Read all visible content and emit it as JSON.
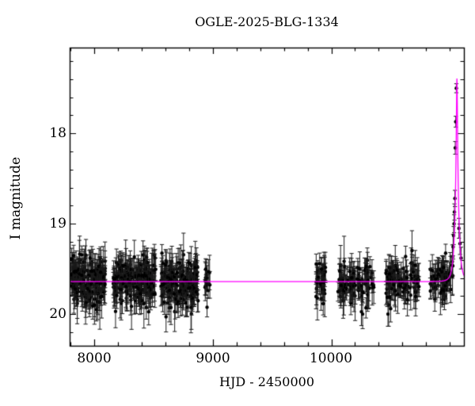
{
  "title": "OGLE-2025-BLG-1334",
  "axes": {
    "xlabel": "HJD - 2450000",
    "ylabel": "I magnitude",
    "x_tick_labels": [
      "8000",
      "9000",
      "10000"
    ],
    "y_tick_labels": [
      "18",
      "19",
      "20"
    ]
  },
  "colors": {
    "background": "#ffffff",
    "frame": "#000000",
    "data_points": "#000000",
    "error_bars": "#1a1a1a",
    "model_curve": "#ff00ff"
  },
  "chart_data": {
    "type": "scatter",
    "title": "OGLE-2025-BLG-1334",
    "xlabel": "HJD - 2450000",
    "ylabel": "I magnitude",
    "xlim": [
      7790,
      11120
    ],
    "ylim": [
      20.35,
      17.05
    ],
    "y_axis_inverted": true,
    "grid": false,
    "legend": false,
    "x_major_ticks": [
      8000,
      9000,
      10000
    ],
    "x_minor_step": 200,
    "y_major_ticks": [
      18,
      19,
      20
    ],
    "y_minor_step": 0.2,
    "model": {
      "kind": "paczynski-microlensing-fit",
      "t0": 11061,
      "tE": 30,
      "u0": 0.127,
      "I_baseline": 19.64,
      "I_peak": 17.39
    },
    "seasons": [
      {
        "t_start": 7800,
        "t_end": 8090,
        "n": 170,
        "sigma": 0.12
      },
      {
        "t_start": 8158,
        "t_end": 8520,
        "n": 200,
        "sigma": 0.12
      },
      {
        "t_start": 8560,
        "t_end": 8875,
        "n": 170,
        "sigma": 0.13
      },
      {
        "t_start": 8928,
        "t_end": 8995,
        "n": 14,
        "sigma": 0.1
      },
      {
        "t_start": 9868,
        "t_end": 9952,
        "n": 38,
        "sigma": 0.11
      },
      {
        "t_start": 10055,
        "t_end": 10360,
        "n": 95,
        "sigma": 0.12
      },
      {
        "t_start": 10460,
        "t_end": 10745,
        "n": 95,
        "sigma": 0.12
      },
      {
        "t_start": 10835,
        "t_end": 11030,
        "n": 70,
        "sigma": 0.1
      }
    ],
    "peak_points": [
      {
        "t": 11033,
        "mag": 19.13,
        "err": 0.1
      },
      {
        "t": 11037,
        "mag": 19.0,
        "err": 0.1
      },
      {
        "t": 11040,
        "mag": 18.87,
        "err": 0.09
      },
      {
        "t": 11044,
        "mag": 18.72,
        "err": 0.09
      },
      {
        "t": 11047,
        "mag": 18.16,
        "err": 0.07
      },
      {
        "t": 11051,
        "mag": 17.87,
        "err": 0.06
      },
      {
        "t": 11056,
        "mag": 17.5,
        "err": 0.05
      },
      {
        "t": 11078,
        "mag": 19.05,
        "err": 0.11
      },
      {
        "t": 11087,
        "mag": 19.22,
        "err": 0.12
      },
      {
        "t": 11096,
        "mag": 19.38,
        "err": 0.12
      }
    ],
    "noise_seed": 20251334
  }
}
